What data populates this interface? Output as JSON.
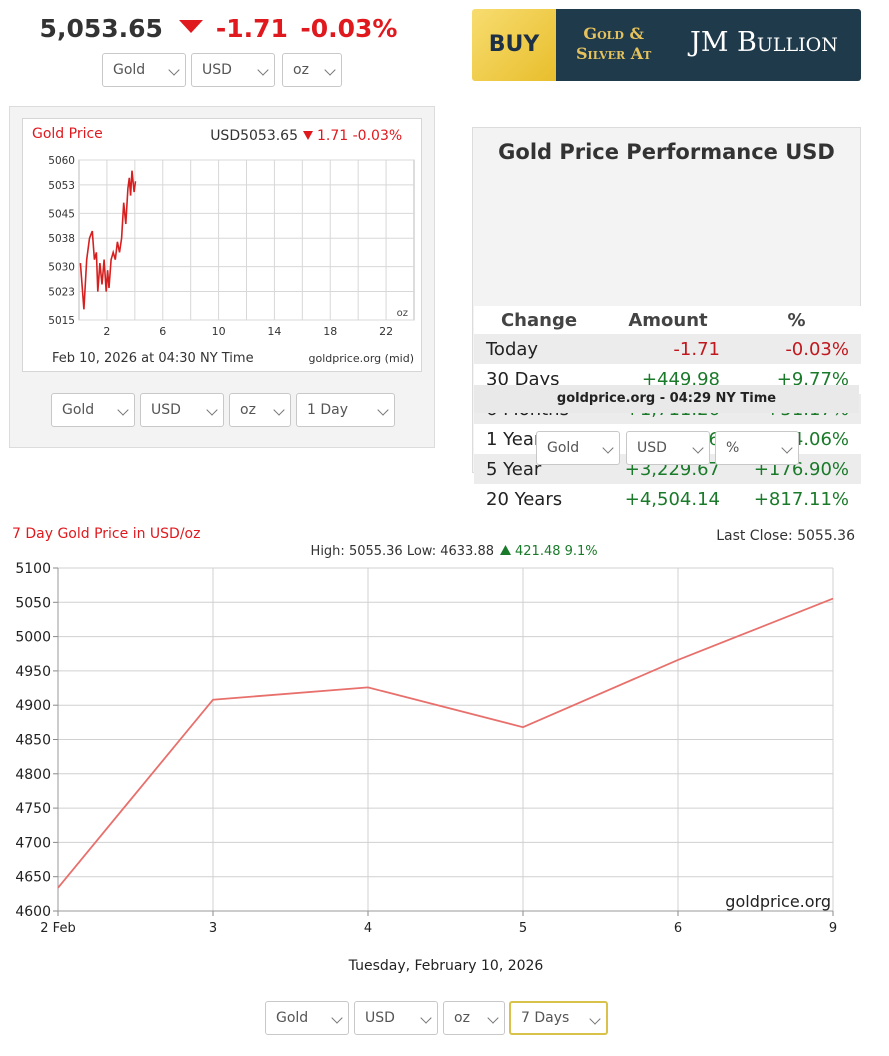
{
  "ticker": {
    "price": "5,053.65",
    "change": "-1.71",
    "change_pct": "-0.03%"
  },
  "top_selects": {
    "metal": "Gold",
    "currency": "USD",
    "unit": "oz"
  },
  "banner": {
    "buy": "BUY",
    "gold_silver_line1": "Gold &",
    "gold_silver_line2": "Silver At",
    "brand": "JM Bullion"
  },
  "mini_chart": {
    "title": "Gold Price",
    "header_value": "USD5053.65",
    "header_change": "1.71 -0.03%",
    "unit": "oz",
    "caption": "Feb 10, 2026 at 04:30 NY Time",
    "source": "goldprice.org (mid)",
    "selects": {
      "metal": "Gold",
      "currency": "USD",
      "unit": "oz",
      "range": "1 Day"
    }
  },
  "performance": {
    "title": "Gold Price Performance USD",
    "headers": [
      "Change",
      "Amount",
      "%"
    ],
    "rows": [
      {
        "label": "Today",
        "amount": "-1.71",
        "pct": "-0.03%",
        "dir": "neg"
      },
      {
        "label": "30 Days",
        "amount": "+449.98",
        "pct": "+9.77%",
        "dir": "pos"
      },
      {
        "label": "6 Months",
        "amount": "+1,711.26",
        "pct": "+51.17%",
        "dir": "pos"
      },
      {
        "label": "1 Year",
        "amount": "+2,151.06",
        "pct": "+74.06%",
        "dir": "pos"
      },
      {
        "label": "5 Year",
        "amount": "+3,229.67",
        "pct": "+176.90%",
        "dir": "pos"
      },
      {
        "label": "20 Years",
        "amount": "+4,504.14",
        "pct": "+817.11%",
        "dir": "pos"
      }
    ],
    "footer": "goldprice.org - 04:29 NY Time",
    "selects": {
      "metal": "Gold",
      "currency": "USD",
      "mode": "%"
    }
  },
  "big_chart": {
    "title": "7 Day Gold Price in USD/oz",
    "last_close": "Last Close: 5055.36",
    "high_low": "High: 5055.36 Low: 4633.88",
    "change": "421.48 9.1%",
    "watermark": "goldprice.org",
    "date_caption": "Tuesday, February 10, 2026",
    "selects": {
      "metal": "Gold",
      "currency": "USD",
      "unit": "oz",
      "range": "7 Days"
    }
  },
  "colors": {
    "down": "#e0191e",
    "up": "#1a7a2a",
    "line": "#e8706c",
    "mini_line": "#d62020"
  },
  "chart_data": [
    {
      "type": "line",
      "title": "Gold Price",
      "x_ticks": [
        2,
        6,
        10,
        14,
        18,
        22
      ],
      "y_ticks": [
        5015,
        5023,
        5030,
        5038,
        5045,
        5053,
        5060
      ],
      "xlim": [
        0,
        24
      ],
      "ylim": [
        5015,
        5060
      ],
      "grid": true,
      "series": [
        {
          "x": [
            0.1,
            0.35,
            0.55,
            0.75,
            0.95,
            1.1,
            1.25,
            1.35,
            1.5,
            1.65,
            1.8,
            1.95,
            2.05,
            2.15,
            2.3,
            2.45,
            2.6,
            2.75,
            2.9,
            3.05,
            3.2,
            3.35,
            3.5,
            3.6,
            3.7,
            3.8,
            3.95,
            4.05
          ],
          "y": [
            5031,
            5018,
            5032,
            5038,
            5040,
            5032,
            5034,
            5023,
            5031,
            5025,
            5032,
            5023,
            5029,
            5024,
            5032,
            5034,
            5032,
            5037,
            5034,
            5038,
            5048,
            5042,
            5052,
            5055,
            5050,
            5057,
            5051,
            5054
          ]
        }
      ]
    },
    {
      "type": "line",
      "title": "7 Day Gold Price in USD/oz",
      "categories": [
        "2 Feb",
        "3",
        "4",
        "5",
        "6",
        "9"
      ],
      "values": [
        4633.88,
        4908,
        4926,
        4868,
        4966,
        5055.36
      ],
      "ylim": [
        4600,
        5100
      ],
      "y_ticks": [
        4600,
        4650,
        4700,
        4750,
        4800,
        4850,
        4900,
        4950,
        5000,
        5050,
        5100
      ],
      "grid": true
    }
  ]
}
